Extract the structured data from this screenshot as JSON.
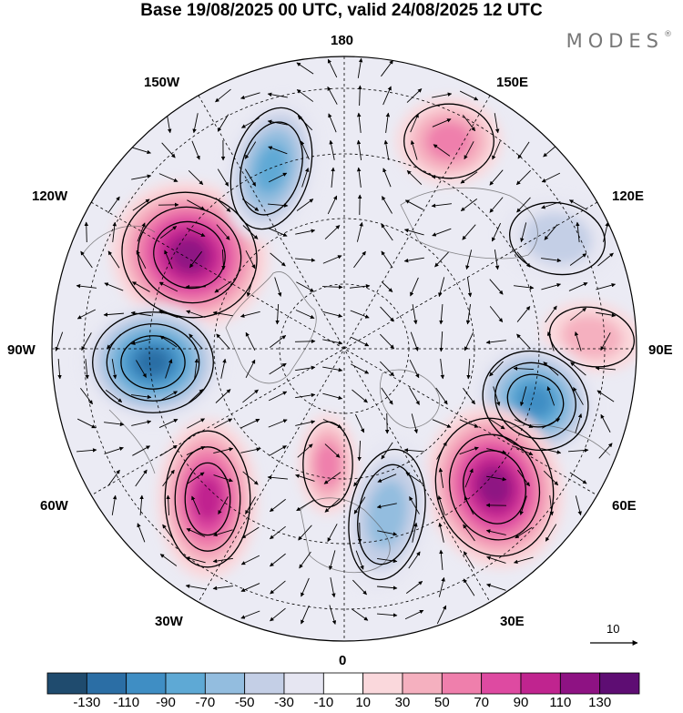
{
  "title": "Base 19/08/2025 00 UTC, valid 24/08/2025 12 UTC",
  "brand": "MODES",
  "brand_mark": "®",
  "lon_labels": {
    "top": "180",
    "bottom": "0",
    "left": "90W",
    "right": "90E",
    "ul150": "150W",
    "ur150": "150E",
    "ul120": "120W",
    "ur120": "120E",
    "ll60": "60W",
    "lr60": "60E",
    "ll30": "30W",
    "lr30": "30E"
  },
  "vector_reference": "10",
  "colorbar": {
    "labels": [
      "-130",
      "-110",
      "-90",
      "-70",
      "-50",
      "-30",
      "-10",
      "10",
      "30",
      "50",
      "70",
      "90",
      "110",
      "130"
    ],
    "colors": [
      "#1f4b6e",
      "#2b6ea5",
      "#3f8ec4",
      "#5ea9d5",
      "#93bddf",
      "#c4cfe6",
      "#e6e6f2",
      "#ffffff",
      "#fad8dc",
      "#f5b0bf",
      "#ef7fac",
      "#de4aa1",
      "#c0248f",
      "#8e1283",
      "#5e0d73"
    ]
  },
  "anomalies": [
    {
      "name": "ridge-120w",
      "value": 120
    },
    {
      "name": "trough-150w",
      "value": -70
    },
    {
      "name": "ridge-150e",
      "value": 50
    },
    {
      "name": "trough-120e",
      "value": -40
    },
    {
      "name": "ridge-90e",
      "value": 30
    },
    {
      "name": "trough-90w",
      "value": -110
    },
    {
      "name": "trough-60e",
      "value": -90
    },
    {
      "name": "ridge-60e",
      "value": 120
    },
    {
      "name": "ridge-60w",
      "value": 100
    },
    {
      "name": "trough-0",
      "value": -60
    },
    {
      "name": "ridge-0",
      "value": 50
    }
  ]
}
